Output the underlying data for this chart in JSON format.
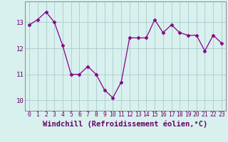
{
  "x": [
    0,
    1,
    2,
    3,
    4,
    5,
    6,
    7,
    8,
    9,
    10,
    11,
    12,
    13,
    14,
    15,
    16,
    17,
    18,
    19,
    20,
    21,
    22,
    23
  ],
  "y": [
    12.9,
    13.1,
    13.4,
    13.0,
    12.1,
    11.0,
    11.0,
    11.3,
    11.0,
    10.4,
    10.1,
    10.7,
    12.4,
    12.4,
    12.4,
    13.1,
    12.6,
    12.9,
    12.6,
    12.5,
    12.5,
    11.9,
    12.5,
    12.2
  ],
  "line_color": "#880088",
  "marker": "D",
  "markersize": 2.5,
  "linewidth": 0.9,
  "bg_color": "#d8f0ee",
  "grid_color": "#aacccc",
  "xlabel": "Windchill (Refroidissement éolien,°C)",
  "xlabel_fontsize": 7.5,
  "xtick_fontsize": 5.8,
  "ytick_fontsize": 6.5,
  "ylim": [
    9.6,
    13.8
  ],
  "yticks": [
    10,
    11,
    12,
    13
  ],
  "xticks": [
    0,
    1,
    2,
    3,
    4,
    5,
    6,
    7,
    8,
    9,
    10,
    11,
    12,
    13,
    14,
    15,
    16,
    17,
    18,
    19,
    20,
    21,
    22,
    23
  ],
  "spine_color": "#888888",
  "tick_color": "#660066",
  "label_color": "#660066"
}
